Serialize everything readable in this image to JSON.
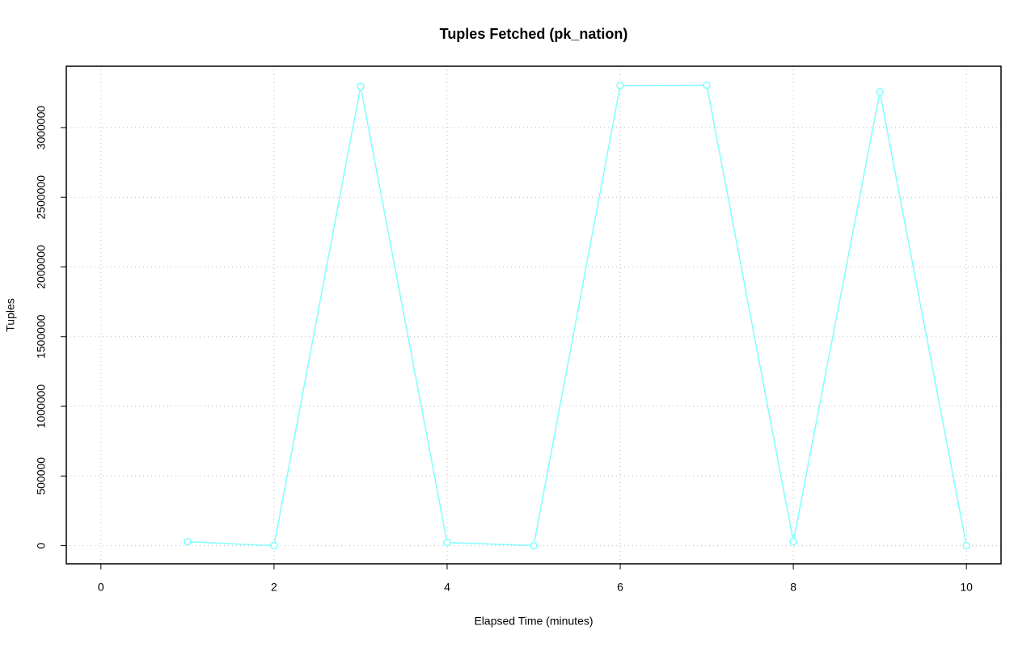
{
  "chart_data": {
    "type": "line",
    "title": "Tuples Fetched (pk_nation)",
    "x_label": "Elapsed Time (minutes)",
    "y_label": "Tuples",
    "x": [
      1,
      2,
      3,
      4,
      5,
      6,
      7,
      8,
      9,
      10
    ],
    "series": [
      {
        "name": "pk_nation",
        "color": "#80ffff",
        "values": [
          29000,
          0,
          3295000,
          23000,
          0,
          3301000,
          3304000,
          29000,
          3255000,
          0
        ]
      }
    ],
    "xlim": [
      -0.4,
      10.4
    ],
    "xticks": [
      0,
      2,
      4,
      6,
      8,
      10
    ],
    "ylim": [
      -130000,
      3440000
    ],
    "yticks": [
      0,
      500000,
      1000000,
      1500000,
      2000000,
      2500000,
      3000000
    ],
    "grid": true
  }
}
